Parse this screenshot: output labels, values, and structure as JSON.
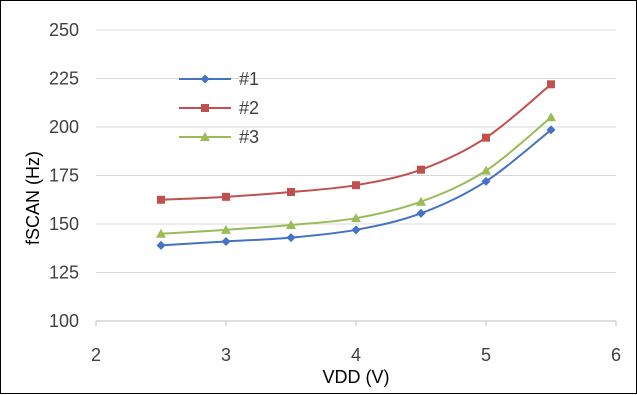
{
  "chart_data": {
    "type": "line",
    "xlabel": "VDD (V)",
    "ylabel": "fSCAN (Hz)",
    "xlim": [
      2,
      6
    ],
    "ylim": [
      100,
      250
    ],
    "xticks": [
      2,
      3,
      4,
      5,
      6
    ],
    "yticks": [
      100,
      125,
      150,
      175,
      200,
      225,
      250
    ],
    "grid": "horizontal",
    "legend_position": "top-left",
    "x": [
      2.5,
      3,
      3.5,
      4,
      4.5,
      5,
      5.5
    ],
    "series": [
      {
        "name": "#1",
        "marker": "diamond",
        "color": "#4472C4",
        "values": [
          139,
          141,
          143,
          147,
          155.5,
          172,
          198.5
        ]
      },
      {
        "name": "#2",
        "marker": "square",
        "color": "#C0504D",
        "values": [
          162.5,
          164,
          166.5,
          170,
          178,
          194.5,
          222
        ]
      },
      {
        "name": "#3",
        "marker": "triangle",
        "color": "#9BBB59",
        "values": [
          145,
          147,
          149.5,
          153,
          161.5,
          177.5,
          205
        ]
      }
    ]
  }
}
